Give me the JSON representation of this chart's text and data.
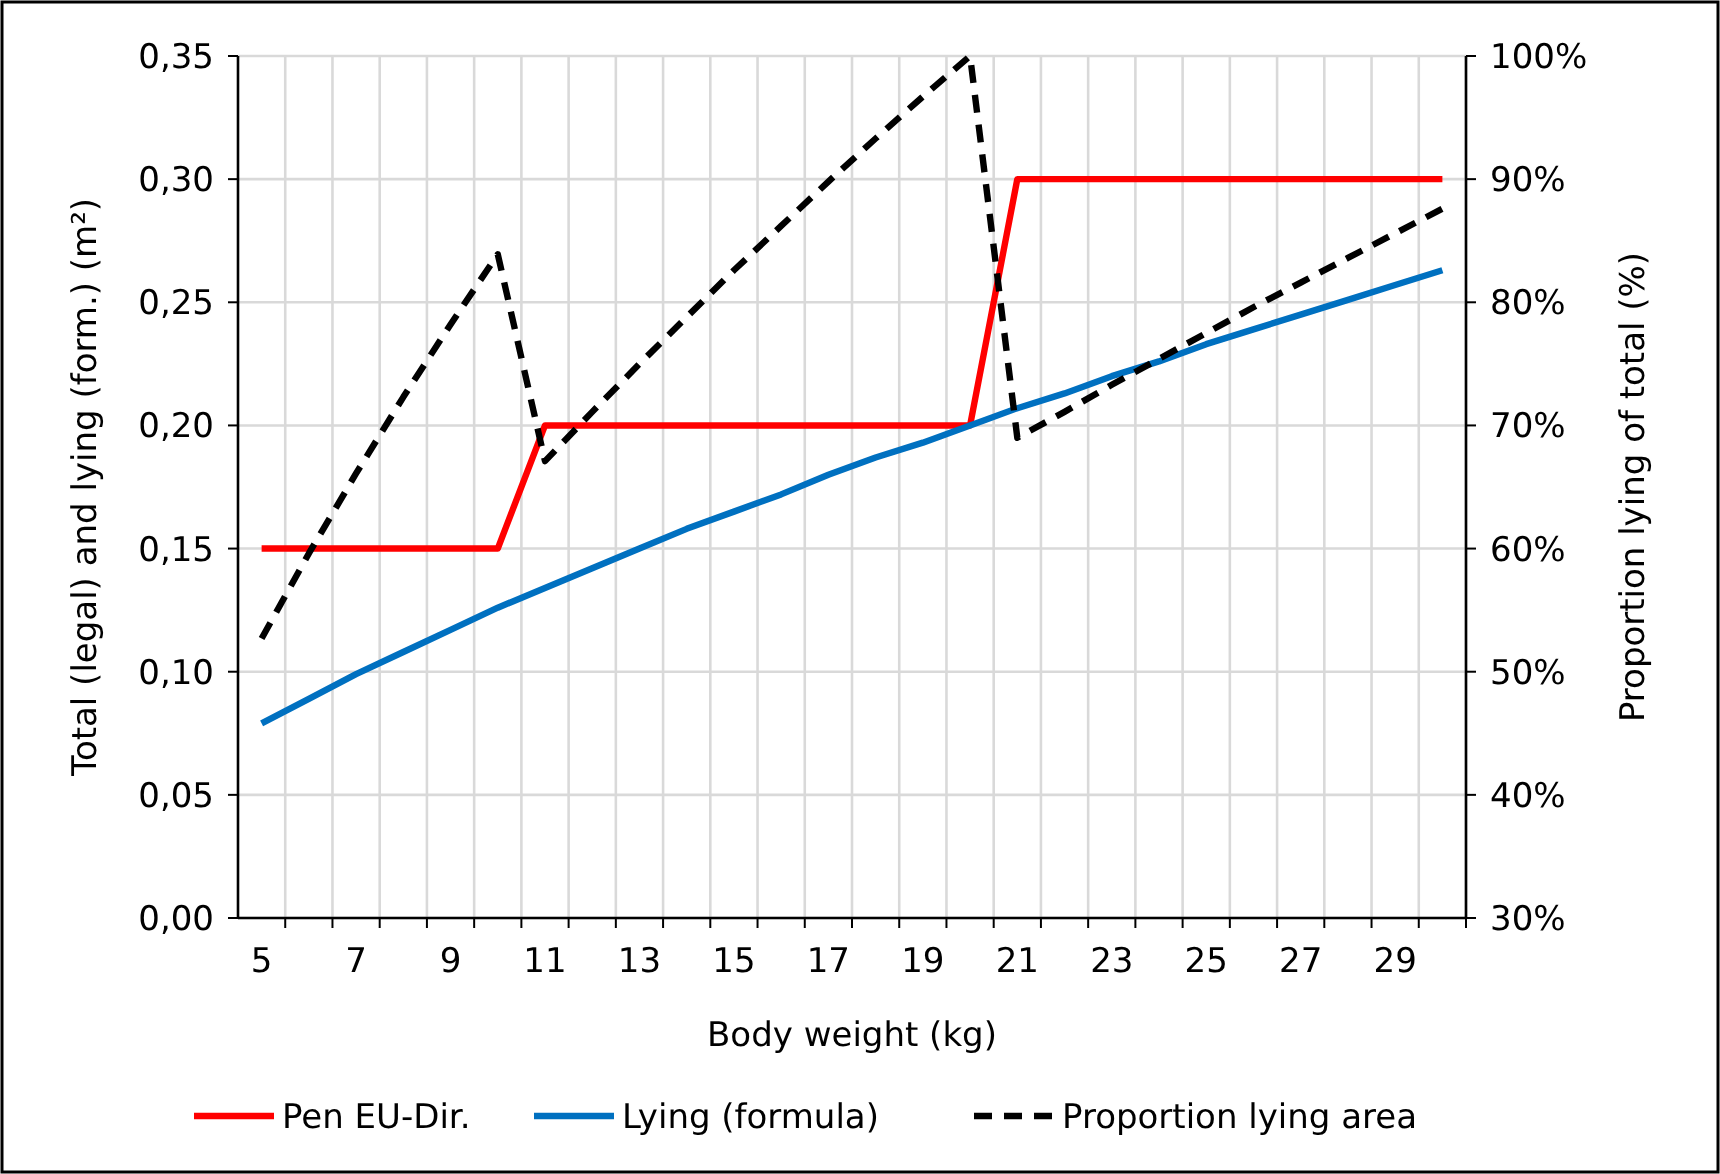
{
  "chart_data": {
    "type": "line",
    "xlabel": "Body weight (kg)",
    "ylabel": "Total (legal) and lying (form.) (m²)",
    "y2label": "Proportion lying of total (%)",
    "x": [
      5,
      6,
      7,
      8,
      9,
      10,
      11,
      12,
      13,
      14,
      15,
      16,
      17,
      18,
      19,
      20,
      21,
      22,
      23,
      24,
      25,
      26,
      27,
      28,
      29,
      30
    ],
    "xlim": [
      4.5,
      30.5
    ],
    "xticks": [
      5,
      7,
      9,
      11,
      13,
      15,
      17,
      19,
      21,
      23,
      25,
      27,
      29
    ],
    "ylim": [
      0,
      0.35
    ],
    "yticks": [
      {
        "value": 0,
        "label": "0,00"
      },
      {
        "value": 0.05,
        "label": "0,05"
      },
      {
        "value": 0.1,
        "label": "0,10"
      },
      {
        "value": 0.15,
        "label": "0,15"
      },
      {
        "value": 0.2,
        "label": "0,20"
      },
      {
        "value": 0.25,
        "label": "0,25"
      },
      {
        "value": 0.3,
        "label": "0,30"
      },
      {
        "value": 0.35,
        "label": "0,35"
      }
    ],
    "y2lim": [
      30,
      100
    ],
    "y2ticks": [
      {
        "value": 30,
        "label": "30%"
      },
      {
        "value": 40,
        "label": "40%"
      },
      {
        "value": 50,
        "label": "50%"
      },
      {
        "value": 60,
        "label": "60%"
      },
      {
        "value": 70,
        "label": "70%"
      },
      {
        "value": 80,
        "label": "80%"
      },
      {
        "value": 90,
        "label": "90%"
      },
      {
        "value": 100,
        "label": "100%"
      }
    ],
    "grid": true,
    "legend": "bottom",
    "marker": "none",
    "series": [
      {
        "name": "Pen EU-Dir.",
        "color": "#ff0000",
        "line_style": "solid",
        "values": [
          0.15,
          0.15,
          0.15,
          0.15,
          0.15,
          0.15,
          0.2,
          0.2,
          0.2,
          0.2,
          0.2,
          0.2,
          0.2,
          0.2,
          0.2,
          0.2,
          0.3,
          0.3,
          0.3,
          0.3,
          0.3,
          0.3,
          0.3,
          0.3,
          0.3,
          0.3
        ]
      },
      {
        "name": "Lying (formula)",
        "color": "#0070c0",
        "line_style": "solid",
        "values": [
          0.079,
          0.089,
          0.099,
          0.108,
          0.117,
          0.126,
          0.134,
          0.142,
          0.15,
          0.158,
          0.165,
          0.172,
          0.18,
          0.187,
          0.193,
          0.2,
          0.207,
          0.213,
          0.22,
          0.226,
          0.233,
          0.239,
          0.245,
          0.251,
          0.257,
          0.263
        ]
      },
      {
        "name": "Proportion lying area",
        "color": "#000000",
        "line_style": "dashed",
        "axis": "y2",
        "values": [
          52.7,
          59.6,
          66.1,
          72.3,
          78.2,
          83.9,
          67.1,
          71.1,
          75,
          78.8,
          82.6,
          86.2,
          89.8,
          93.3,
          96.7,
          100,
          69,
          71.1,
          73.3,
          75.4,
          77.5,
          79.6,
          81.6,
          83.6,
          85.6,
          87.6
        ]
      }
    ]
  }
}
